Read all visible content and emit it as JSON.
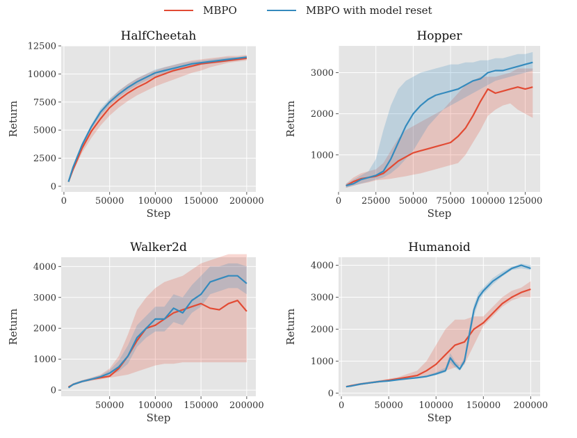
{
  "legend": {
    "mbpo": {
      "label": "MBPO",
      "color": "#E24A33"
    },
    "reset": {
      "label": "MBPO with model reset",
      "color": "#348ABD"
    }
  },
  "chart_data": [
    {
      "type": "line",
      "title": "HalfCheetah",
      "xlabel": "Step",
      "ylabel": "Return",
      "xlim": [
        -3000,
        210000
      ],
      "ylim": [
        -500,
        12500
      ],
      "xticks": [
        0,
        50000,
        100000,
        150000,
        200000
      ],
      "yticks": [
        0,
        2500,
        5000,
        7500,
        10000,
        12500
      ],
      "series": [
        {
          "name": "MBPO",
          "color": "#E24A33",
          "x": [
            5000,
            10000,
            20000,
            30000,
            40000,
            50000,
            60000,
            70000,
            80000,
            90000,
            100000,
            110000,
            120000,
            130000,
            140000,
            150000,
            160000,
            170000,
            180000,
            190000,
            200000
          ],
          "y": [
            400,
            1500,
            3400,
            4900,
            6000,
            7000,
            7700,
            8300,
            8800,
            9200,
            9700,
            10000,
            10300,
            10500,
            10700,
            10900,
            11000,
            11100,
            11200,
            11300,
            11400
          ],
          "lower": [
            400,
            1300,
            3000,
            4300,
            5400,
            6300,
            7000,
            7600,
            8100,
            8500,
            8900,
            9200,
            9500,
            9800,
            10100,
            10300,
            10600,
            10800,
            11000,
            11100,
            11200
          ],
          "upper": [
            400,
            1700,
            3800,
            5400,
            6700,
            7700,
            8500,
            9100,
            9600,
            10000,
            10300,
            10600,
            10800,
            11000,
            11200,
            11300,
            11400,
            11500,
            11600,
            11600,
            11700
          ]
        },
        {
          "name": "MBPO with model reset",
          "color": "#348ABD",
          "x": [
            5000,
            10000,
            20000,
            30000,
            40000,
            50000,
            60000,
            70000,
            80000,
            90000,
            100000,
            110000,
            120000,
            130000,
            140000,
            150000,
            160000,
            170000,
            180000,
            190000,
            200000
          ],
          "y": [
            400,
            1700,
            3700,
            5300,
            6600,
            7500,
            8200,
            8800,
            9300,
            9700,
            10100,
            10300,
            10500,
            10700,
            10900,
            11000,
            11100,
            11200,
            11300,
            11400,
            11500
          ],
          "lower": [
            400,
            1600,
            3500,
            5100,
            6300,
            7200,
            7900,
            8500,
            9000,
            9400,
            9800,
            10000,
            10200,
            10400,
            10600,
            10800,
            10900,
            11000,
            11100,
            11200,
            11300
          ],
          "upper": [
            400,
            1800,
            3900,
            5500,
            6900,
            7800,
            8500,
            9100,
            9600,
            10000,
            10400,
            10600,
            10800,
            11000,
            11100,
            11200,
            11300,
            11400,
            11500,
            11500,
            11600
          ]
        }
      ]
    },
    {
      "type": "line",
      "title": "Hopper",
      "xlabel": "Step",
      "ylabel": "Return",
      "xlim": [
        0,
        135000
      ],
      "ylim": [
        100,
        3650
      ],
      "xticks": [
        0,
        25000,
        50000,
        75000,
        100000,
        125000
      ],
      "yticks": [
        1000,
        2000,
        3000
      ],
      "series": [
        {
          "name": "MBPO",
          "color": "#E24A33",
          "x": [
            5000,
            10000,
            15000,
            20000,
            25000,
            30000,
            35000,
            40000,
            45000,
            50000,
            55000,
            60000,
            65000,
            70000,
            75000,
            80000,
            85000,
            90000,
            95000,
            100000,
            105000,
            110000,
            115000,
            120000,
            125000,
            130000
          ],
          "y": [
            250,
            350,
            420,
            450,
            480,
            550,
            700,
            850,
            950,
            1050,
            1100,
            1150,
            1200,
            1250,
            1300,
            1450,
            1650,
            1950,
            2300,
            2600,
            2500,
            2550,
            2600,
            2650,
            2600,
            2650
          ],
          "lower": [
            200,
            250,
            300,
            330,
            380,
            400,
            420,
            450,
            480,
            520,
            550,
            600,
            650,
            700,
            750,
            800,
            1000,
            1300,
            1600,
            1950,
            2100,
            2200,
            2250,
            2100,
            2000,
            1900
          ],
          "upper": [
            300,
            450,
            550,
            600,
            650,
            800,
            1100,
            1400,
            1600,
            1700,
            1800,
            1900,
            2000,
            2100,
            2300,
            2500,
            2700,
            2800,
            2900,
            2900,
            2900,
            2950,
            3000,
            3100,
            3100,
            3100
          ]
        },
        {
          "name": "MBPO with model reset",
          "color": "#348ABD",
          "x": [
            5000,
            10000,
            15000,
            20000,
            25000,
            30000,
            35000,
            40000,
            45000,
            50000,
            55000,
            60000,
            65000,
            70000,
            75000,
            80000,
            85000,
            90000,
            95000,
            100000,
            105000,
            110000,
            115000,
            120000,
            125000,
            130000
          ],
          "y": [
            250,
            300,
            400,
            450,
            500,
            600,
            900,
            1300,
            1700,
            2000,
            2200,
            2350,
            2450,
            2500,
            2550,
            2600,
            2700,
            2800,
            2850,
            3000,
            3050,
            3050,
            3100,
            3150,
            3200,
            3250
          ],
          "lower": [
            200,
            250,
            300,
            350,
            400,
            450,
            550,
            700,
            900,
            1100,
            1400,
            1700,
            1900,
            2100,
            2200,
            2300,
            2400,
            2500,
            2600,
            2700,
            2800,
            2850,
            2900,
            2950,
            3000,
            3050
          ],
          "upper": [
            300,
            400,
            500,
            600,
            900,
            1600,
            2200,
            2600,
            2800,
            2900,
            3000,
            3050,
            3100,
            3150,
            3200,
            3200,
            3250,
            3250,
            3300,
            3300,
            3350,
            3350,
            3400,
            3450,
            3450,
            3500
          ]
        }
      ]
    },
    {
      "type": "line",
      "title": "Walker2d",
      "xlabel": "Step",
      "ylabel": "Return",
      "xlim": [
        -3000,
        210000
      ],
      "ylim": [
        -200,
        4300
      ],
      "xticks": [
        50000,
        100000,
        150000,
        200000
      ],
      "yticks": [
        0,
        1000,
        2000,
        3000,
        4000
      ],
      "series": [
        {
          "name": "MBPO",
          "color": "#E24A33",
          "x": [
            5000,
            10000,
            20000,
            30000,
            40000,
            50000,
            60000,
            70000,
            80000,
            90000,
            100000,
            110000,
            120000,
            130000,
            140000,
            150000,
            160000,
            170000,
            180000,
            190000,
            200000
          ],
          "y": [
            100,
            180,
            280,
            350,
            400,
            450,
            700,
            1100,
            1600,
            2000,
            2100,
            2300,
            2500,
            2600,
            2700,
            2800,
            2650,
            2600,
            2800,
            2900,
            2550
          ],
          "lower": [
            100,
            150,
            250,
            300,
            350,
            400,
            450,
            500,
            600,
            700,
            800,
            850,
            850,
            900,
            900,
            900,
            900,
            900,
            900,
            900,
            900
          ],
          "upper": [
            120,
            220,
            320,
            400,
            500,
            700,
            1100,
            1800,
            2600,
            3000,
            3300,
            3500,
            3600,
            3700,
            3900,
            4100,
            4200,
            4300,
            4400,
            4400,
            4400
          ]
        },
        {
          "name": "MBPO with model reset",
          "color": "#348ABD",
          "x": [
            5000,
            10000,
            20000,
            30000,
            40000,
            50000,
            60000,
            70000,
            80000,
            90000,
            100000,
            110000,
            120000,
            130000,
            140000,
            150000,
            160000,
            170000,
            180000,
            190000,
            200000
          ],
          "y": [
            80,
            180,
            280,
            350,
            430,
            550,
            750,
            1100,
            1700,
            2000,
            2300,
            2300,
            2650,
            2500,
            2900,
            3100,
            3500,
            3600,
            3700,
            3700,
            3450
          ],
          "lower": [
            70,
            150,
            250,
            320,
            400,
            480,
            600,
            850,
            1400,
            1700,
            1900,
            1900,
            2200,
            2100,
            2500,
            2700,
            3100,
            3200,
            3300,
            3300,
            3100
          ],
          "upper": [
            100,
            220,
            320,
            400,
            480,
            650,
            950,
            1450,
            2100,
            2400,
            2700,
            2700,
            3100,
            3000,
            3400,
            3700,
            4000,
            4000,
            4100,
            4100,
            4000
          ]
        }
      ]
    },
    {
      "type": "line",
      "title": "Humanoid",
      "xlabel": "Step",
      "ylabel": "Return",
      "xlim": [
        -3000,
        210000
      ],
      "ylim": [
        -100,
        4250
      ],
      "xticks": [
        0,
        50000,
        100000,
        150000,
        200000
      ],
      "yticks": [
        0,
        1000,
        2000,
        3000,
        4000
      ],
      "series": [
        {
          "name": "MBPO",
          "color": "#E24A33",
          "x": [
            5000,
            10000,
            20000,
            30000,
            40000,
            50000,
            60000,
            70000,
            80000,
            90000,
            100000,
            110000,
            120000,
            130000,
            140000,
            150000,
            160000,
            170000,
            180000,
            190000,
            200000
          ],
          "y": [
            200,
            230,
            280,
            320,
            360,
            400,
            450,
            500,
            550,
            700,
            900,
            1200,
            1500,
            1600,
            2000,
            2200,
            2500,
            2800,
            3000,
            3150,
            3250
          ],
          "lower": [
            180,
            200,
            250,
            300,
            330,
            370,
            400,
            450,
            500,
            550,
            600,
            700,
            800,
            900,
            1500,
            2100,
            2400,
            2700,
            2900,
            3000,
            3000
          ],
          "upper": [
            220,
            260,
            320,
            360,
            400,
            450,
            500,
            600,
            700,
            1000,
            1500,
            2000,
            2300,
            2300,
            2400,
            2400,
            2700,
            3000,
            3200,
            3300,
            3500
          ]
        },
        {
          "name": "MBPO with model reset",
          "color": "#348ABD",
          "x": [
            5000,
            10000,
            20000,
            30000,
            40000,
            50000,
            60000,
            70000,
            80000,
            90000,
            100000,
            110000,
            115000,
            120000,
            125000,
            130000,
            135000,
            140000,
            145000,
            150000,
            160000,
            170000,
            180000,
            190000,
            200000
          ],
          "y": [
            200,
            220,
            280,
            320,
            360,
            380,
            420,
            450,
            480,
            520,
            600,
            700,
            1100,
            900,
            750,
            1000,
            1800,
            2600,
            3000,
            3200,
            3500,
            3700,
            3900,
            4000,
            3900
          ],
          "lower": [
            180,
            200,
            260,
            300,
            340,
            360,
            400,
            430,
            460,
            500,
            560,
            650,
            950,
            800,
            700,
            900,
            1600,
            2400,
            2850,
            3100,
            3400,
            3650,
            3850,
            3900,
            3850
          ],
          "upper": [
            220,
            250,
            310,
            350,
            390,
            410,
            450,
            480,
            510,
            560,
            650,
            800,
            1250,
            1000,
            850,
            1100,
            2000,
            2750,
            3150,
            3300,
            3600,
            3800,
            3950,
            4050,
            4000
          ]
        }
      ]
    }
  ]
}
